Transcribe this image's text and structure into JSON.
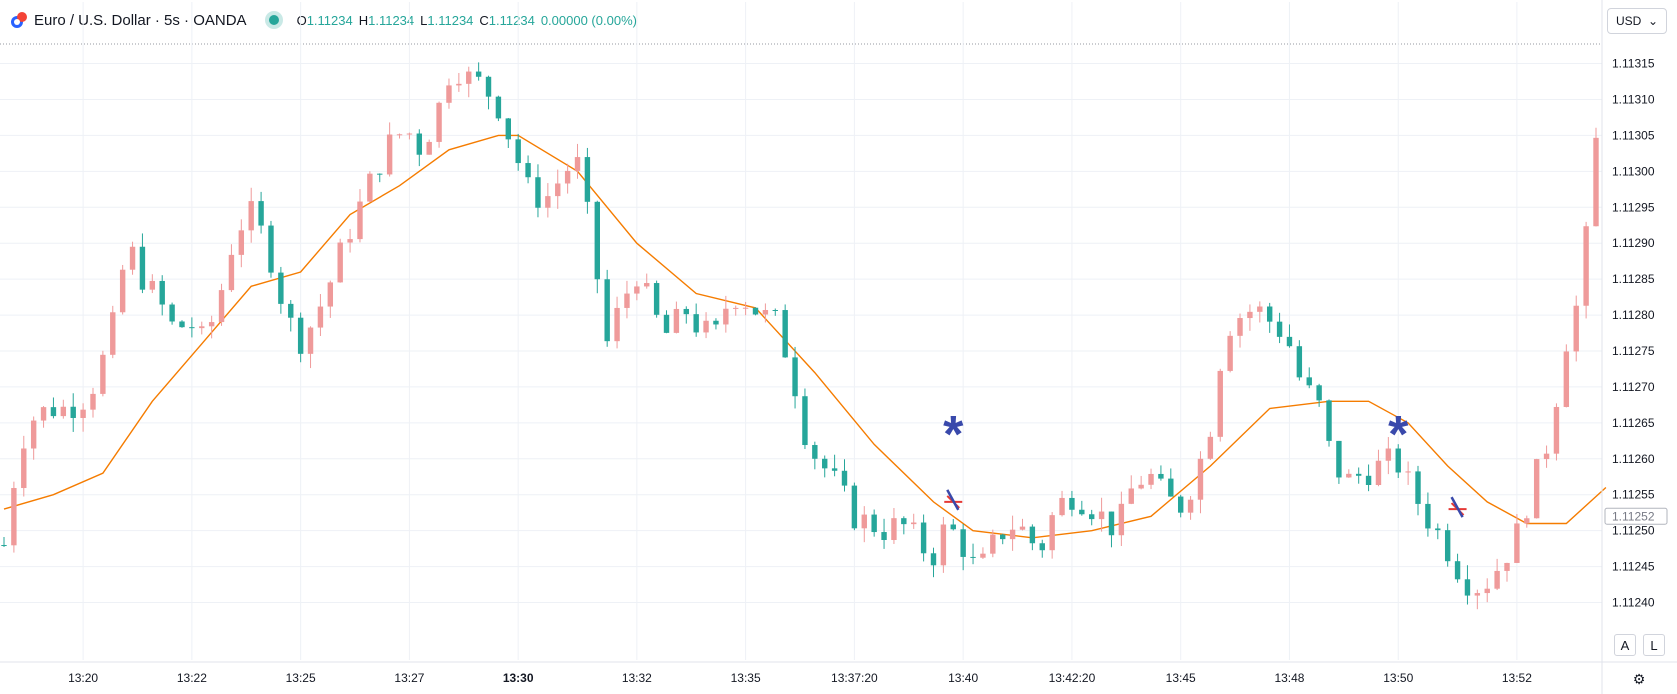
{
  "header": {
    "symbol_title": "Euro / U.S. Dollar · 5s · OANDA",
    "ohlc": [
      {
        "k": "O",
        "v": "1.11234"
      },
      {
        "k": "H",
        "v": "1.11234"
      },
      {
        "k": "L",
        "v": "1.11234"
      },
      {
        "k": "C",
        "v": "1.11234"
      }
    ],
    "change": "0.00000 (0.00%)"
  },
  "currency_select": {
    "value": "USD"
  },
  "scale_buttons": {
    "auto": "A",
    "log": "L"
  },
  "icons": {
    "symbol": "currency-pair-icon",
    "status": "market-status-dot",
    "settings": "gear-icon"
  },
  "colors": {
    "up": "#ef9a9a",
    "down": "#26a69a",
    "ma": "#f57c00",
    "marker_blue": "#3949ab",
    "marker_red": "#e53935"
  },
  "chart_data": {
    "type": "candlestick",
    "title": "",
    "ylim": [
      1.11232,
      1.11318
    ],
    "y_ticks": [
      1.11315,
      1.1131,
      1.11305,
      1.113,
      1.11295,
      1.1129,
      1.11285,
      1.1128,
      1.11275,
      1.1127,
      1.11265,
      1.1126,
      1.11255,
      1.1125,
      1.11245,
      1.1124
    ],
    "x_ticks": [
      {
        "label": "13:20",
        "bold": false
      },
      {
        "label": "13:22",
        "bold": false
      },
      {
        "label": "13:25",
        "bold": false
      },
      {
        "label": "13:27",
        "bold": false
      },
      {
        "label": "13:30",
        "bold": true
      },
      {
        "label": "13:32",
        "bold": false
      },
      {
        "label": "13:35",
        "bold": false
      },
      {
        "label": "13:37:20",
        "bold": false
      },
      {
        "label": "13:40",
        "bold": false
      },
      {
        "label": "13:42:20",
        "bold": false
      },
      {
        "label": "13:45",
        "bold": false
      },
      {
        "label": "13:48",
        "bold": false
      },
      {
        "label": "13:50",
        "bold": false
      },
      {
        "label": "13:52",
        "bold": false
      }
    ],
    "last_price_label": "1.11252",
    "close_series": [
      1.11248,
      1.11262,
      1.11266,
      1.11267,
      1.11267,
      1.11268,
      1.11271,
      1.11278,
      1.1129,
      1.11285,
      1.11282,
      1.11278,
      1.11279,
      1.11276,
      1.11283,
      1.11292,
      1.11294,
      1.1129,
      1.11282,
      1.11276,
      1.11279,
      1.11284,
      1.1129,
      1.11295,
      1.113,
      1.11304,
      1.11306,
      1.11303,
      1.11308,
      1.11315,
      1.11313,
      1.11312,
      1.11309,
      1.11303,
      1.11297,
      1.11296,
      1.11299,
      1.11302,
      1.11291,
      1.11276,
      1.11282,
      1.11286,
      1.1128,
      1.11277,
      1.11281,
      1.11278,
      1.11277,
      1.11283,
      1.11282,
      1.1128,
      1.11279,
      1.11272,
      1.11262,
      1.11259,
      1.11256,
      1.11252,
      1.11251,
      1.1125,
      1.11251,
      1.11249,
      1.11246,
      1.11251,
      1.11248,
      1.11244,
      1.11248,
      1.11251,
      1.1125,
      1.11247,
      1.11253,
      1.11255,
      1.11254,
      1.11252,
      1.1125,
      1.11256,
      1.11258,
      1.11255,
      1.11253,
      1.11257,
      1.11264,
      1.11278,
      1.1128,
      1.11281,
      1.11279,
      1.11277,
      1.1127,
      1.11268,
      1.11259,
      1.11257,
      1.11258,
      1.11259,
      1.1126,
      1.11256,
      1.11252,
      1.11249,
      1.11245,
      1.11242,
      1.11243,
      1.11246,
      1.1125,
      1.11257,
      1.11263,
      1.11276,
      1.11283,
      1.11304
    ],
    "moving_average": [
      [
        0,
        1.11253
      ],
      [
        5,
        1.11255
      ],
      [
        10,
        1.11258
      ],
      [
        15,
        1.11268
      ],
      [
        20,
        1.11276
      ],
      [
        25,
        1.11284
      ],
      [
        30,
        1.11286
      ],
      [
        35,
        1.11294
      ],
      [
        40,
        1.11298
      ],
      [
        45,
        1.11303
      ],
      [
        50,
        1.11305
      ],
      [
        52,
        1.11305
      ],
      [
        58,
        1.113
      ],
      [
        64,
        1.1129
      ],
      [
        70,
        1.11283
      ],
      [
        76,
        1.11281
      ],
      [
        82,
        1.11272
      ],
      [
        88,
        1.11262
      ],
      [
        94,
        1.11254
      ],
      [
        98,
        1.1125
      ],
      [
        104,
        1.11249
      ],
      [
        110,
        1.1125
      ],
      [
        116,
        1.11252
      ],
      [
        122,
        1.11259
      ],
      [
        128,
        1.11267
      ],
      [
        134,
        1.11268
      ],
      [
        138,
        1.11268
      ],
      [
        142,
        1.11265
      ],
      [
        146,
        1.11259
      ],
      [
        150,
        1.11254
      ],
      [
        154,
        1.11251
      ],
      [
        158,
        1.11251
      ],
      [
        162,
        1.11256
      ]
    ],
    "markers": [
      {
        "kind": "asterisk",
        "index": 96,
        "price": 1.11264
      },
      {
        "kind": "cross",
        "index": 96,
        "price": 1.11254
      },
      {
        "kind": "asterisk",
        "index": 141,
        "price": 1.11264
      },
      {
        "kind": "cross",
        "index": 147,
        "price": 1.11253
      }
    ]
  }
}
